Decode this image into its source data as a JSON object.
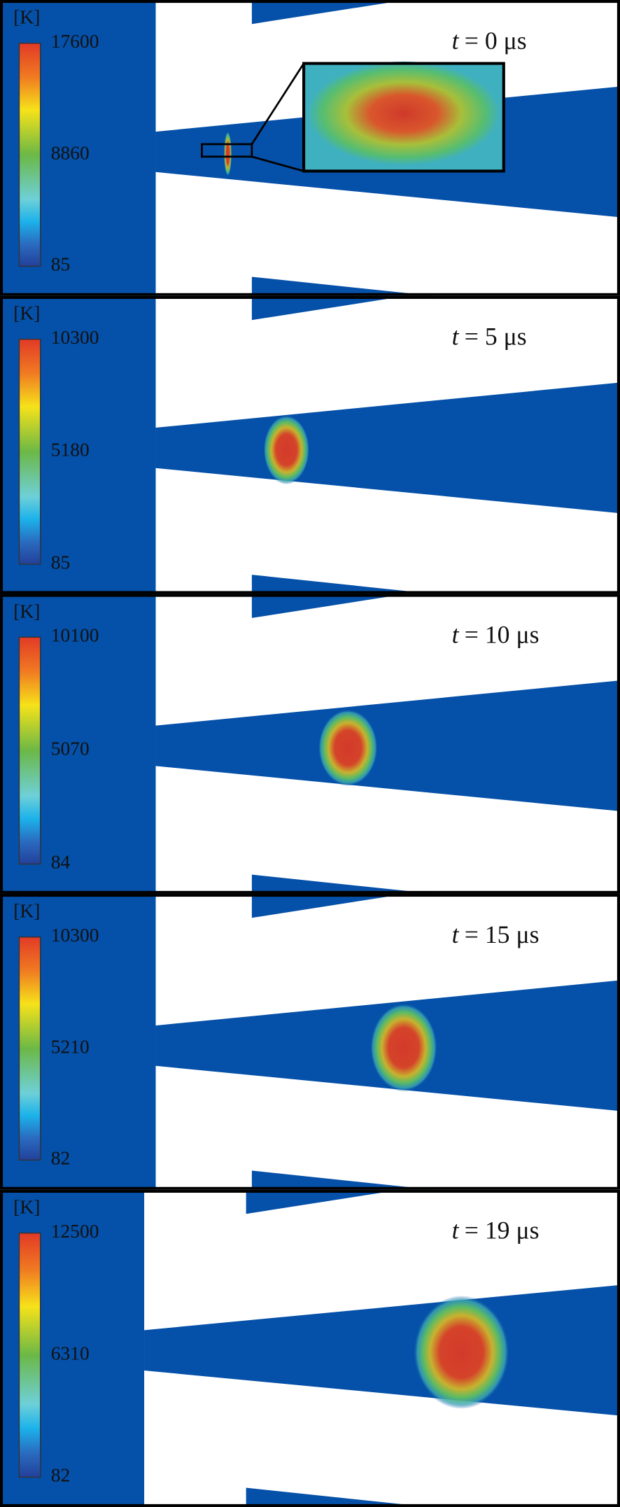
{
  "panels": [
    {
      "unit": "[K]",
      "colorbar_ticks": [
        17600,
        8860,
        85
      ],
      "time_symbol": "t",
      "time_rest": "= 0 μs"
    },
    {
      "unit": "[K]",
      "colorbar_ticks": [
        10300,
        5180,
        85
      ],
      "time_symbol": "t",
      "time_rest": "= 5 μs"
    },
    {
      "unit": "[K]",
      "colorbar_ticks": [
        10100,
        5070,
        84
      ],
      "time_symbol": "t",
      "time_rest": "= 10 μs"
    },
    {
      "unit": "[K]",
      "colorbar_ticks": [
        10300,
        5210,
        82
      ],
      "time_symbol": "t",
      "time_rest": "= 15 μs"
    },
    {
      "unit": "[K]",
      "colorbar_ticks": [
        12500,
        6310,
        82
      ],
      "time_symbol": "t",
      "time_rest": "= 19 μs"
    }
  ]
}
